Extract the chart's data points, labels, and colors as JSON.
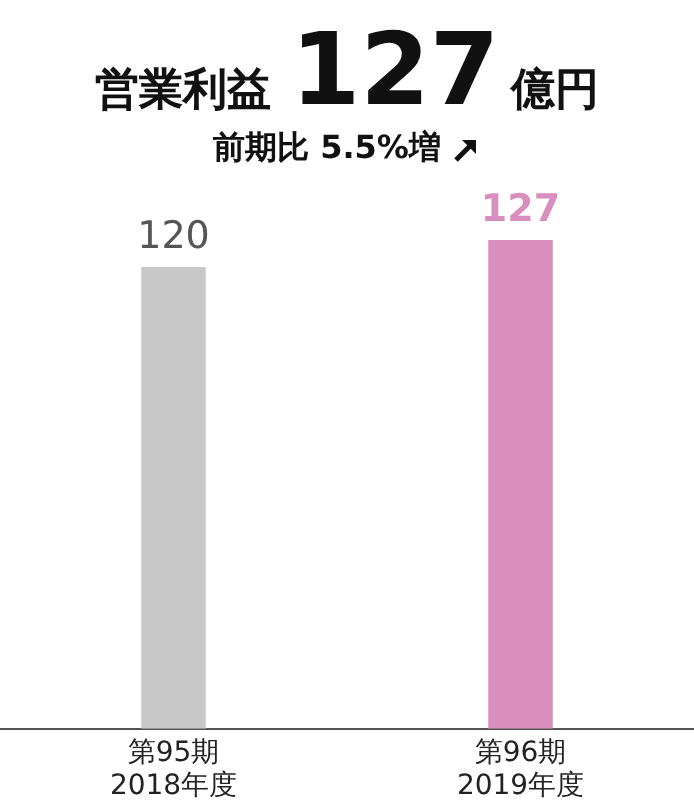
{
  "chart_data": {
    "type": "bar",
    "title": "営業利益127億円",
    "subtitle": "前期比 5.5%増",
    "categories": [
      "第95期\n2018年度",
      "第96期\n2019年度"
    ],
    "values": [
      120,
      127
    ],
    "colors": [
      "#c8c8c8",
      "#d98fbd"
    ],
    "data_labels": true,
    "grid": false,
    "legend": false
  }
}
